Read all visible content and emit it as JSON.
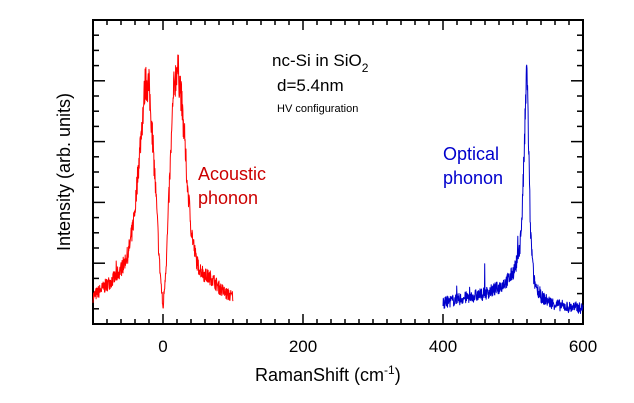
{
  "chart_data": {
    "type": "line",
    "xlabel": "RamanShift (cm",
    "xlabel_sup": "-1",
    "xlabel_end": ")",
    "ylabel": "Intensity (arb. units)",
    "xlim": [
      -100,
      600
    ],
    "ylim": [
      0,
      1
    ],
    "xticks": [
      "0",
      "200",
      "400",
      "600"
    ],
    "xtick_values": [
      0,
      200,
      400,
      600
    ],
    "grid": false,
    "annotations": {
      "sample_prefix": "nc-Si in SiO",
      "sample_sub": "2",
      "size": "d=5.4nm",
      "config": "HV configuration",
      "acoustic_line1": "Acoustic",
      "acoustic_line2": "phonon",
      "optical_line1": "Optical",
      "optical_line2": "phonon"
    },
    "series": [
      {
        "name": "Acoustic phonon",
        "color": "#ff0000",
        "x": [
          -100,
          -90,
          -80,
          -70,
          -60,
          -50,
          -45,
          -40,
          -35,
          -30,
          -25,
          -20,
          -15,
          -10,
          -5,
          0,
          5,
          10,
          15,
          20,
          25,
          30,
          35,
          40,
          45,
          50,
          60,
          70,
          80,
          90,
          100
        ],
        "y": [
          0.09,
          0.11,
          0.13,
          0.15,
          0.18,
          0.23,
          0.29,
          0.38,
          0.52,
          0.66,
          0.8,
          0.78,
          0.62,
          0.42,
          0.2,
          0.05,
          0.22,
          0.5,
          0.76,
          0.85,
          0.78,
          0.62,
          0.46,
          0.32,
          0.24,
          0.19,
          0.16,
          0.15,
          0.12,
          0.1,
          0.09
        ]
      },
      {
        "name": "Optical phonon",
        "color": "#0000cc",
        "x": [
          400,
          410,
          420,
          430,
          440,
          450,
          460,
          470,
          480,
          490,
          495,
          500,
          505,
          510,
          513,
          516,
          518,
          520,
          522,
          525,
          530,
          540,
          550,
          560,
          570,
          580,
          590,
          600
        ],
        "y": [
          0.07,
          0.075,
          0.08,
          0.085,
          0.09,
          0.095,
          0.1,
          0.11,
          0.12,
          0.14,
          0.15,
          0.17,
          0.2,
          0.26,
          0.36,
          0.56,
          0.72,
          0.86,
          0.62,
          0.3,
          0.14,
          0.09,
          0.075,
          0.065,
          0.06,
          0.055,
          0.055,
          0.05
        ]
      }
    ]
  }
}
